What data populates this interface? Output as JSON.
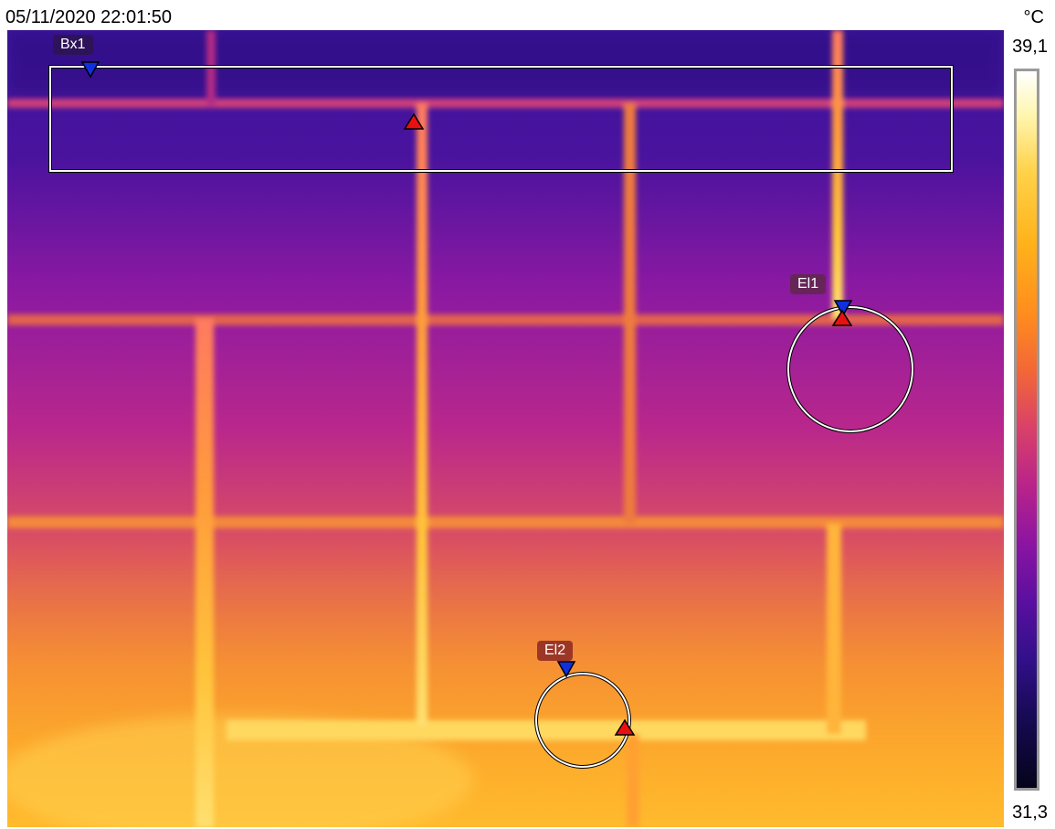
{
  "header": {
    "timestamp": "05/11/2020 22:01:50",
    "unit": "°C"
  },
  "scale": {
    "max_label": "39,1",
    "min_label": "31,3",
    "palette": "iron"
  },
  "measurements": {
    "box1": {
      "label": "Bx1"
    },
    "ellipse1": {
      "label": "El1"
    },
    "ellipse2": {
      "label": "El2"
    }
  },
  "marker_colors": {
    "cold": "#1030e0",
    "hot": "#e81010"
  }
}
